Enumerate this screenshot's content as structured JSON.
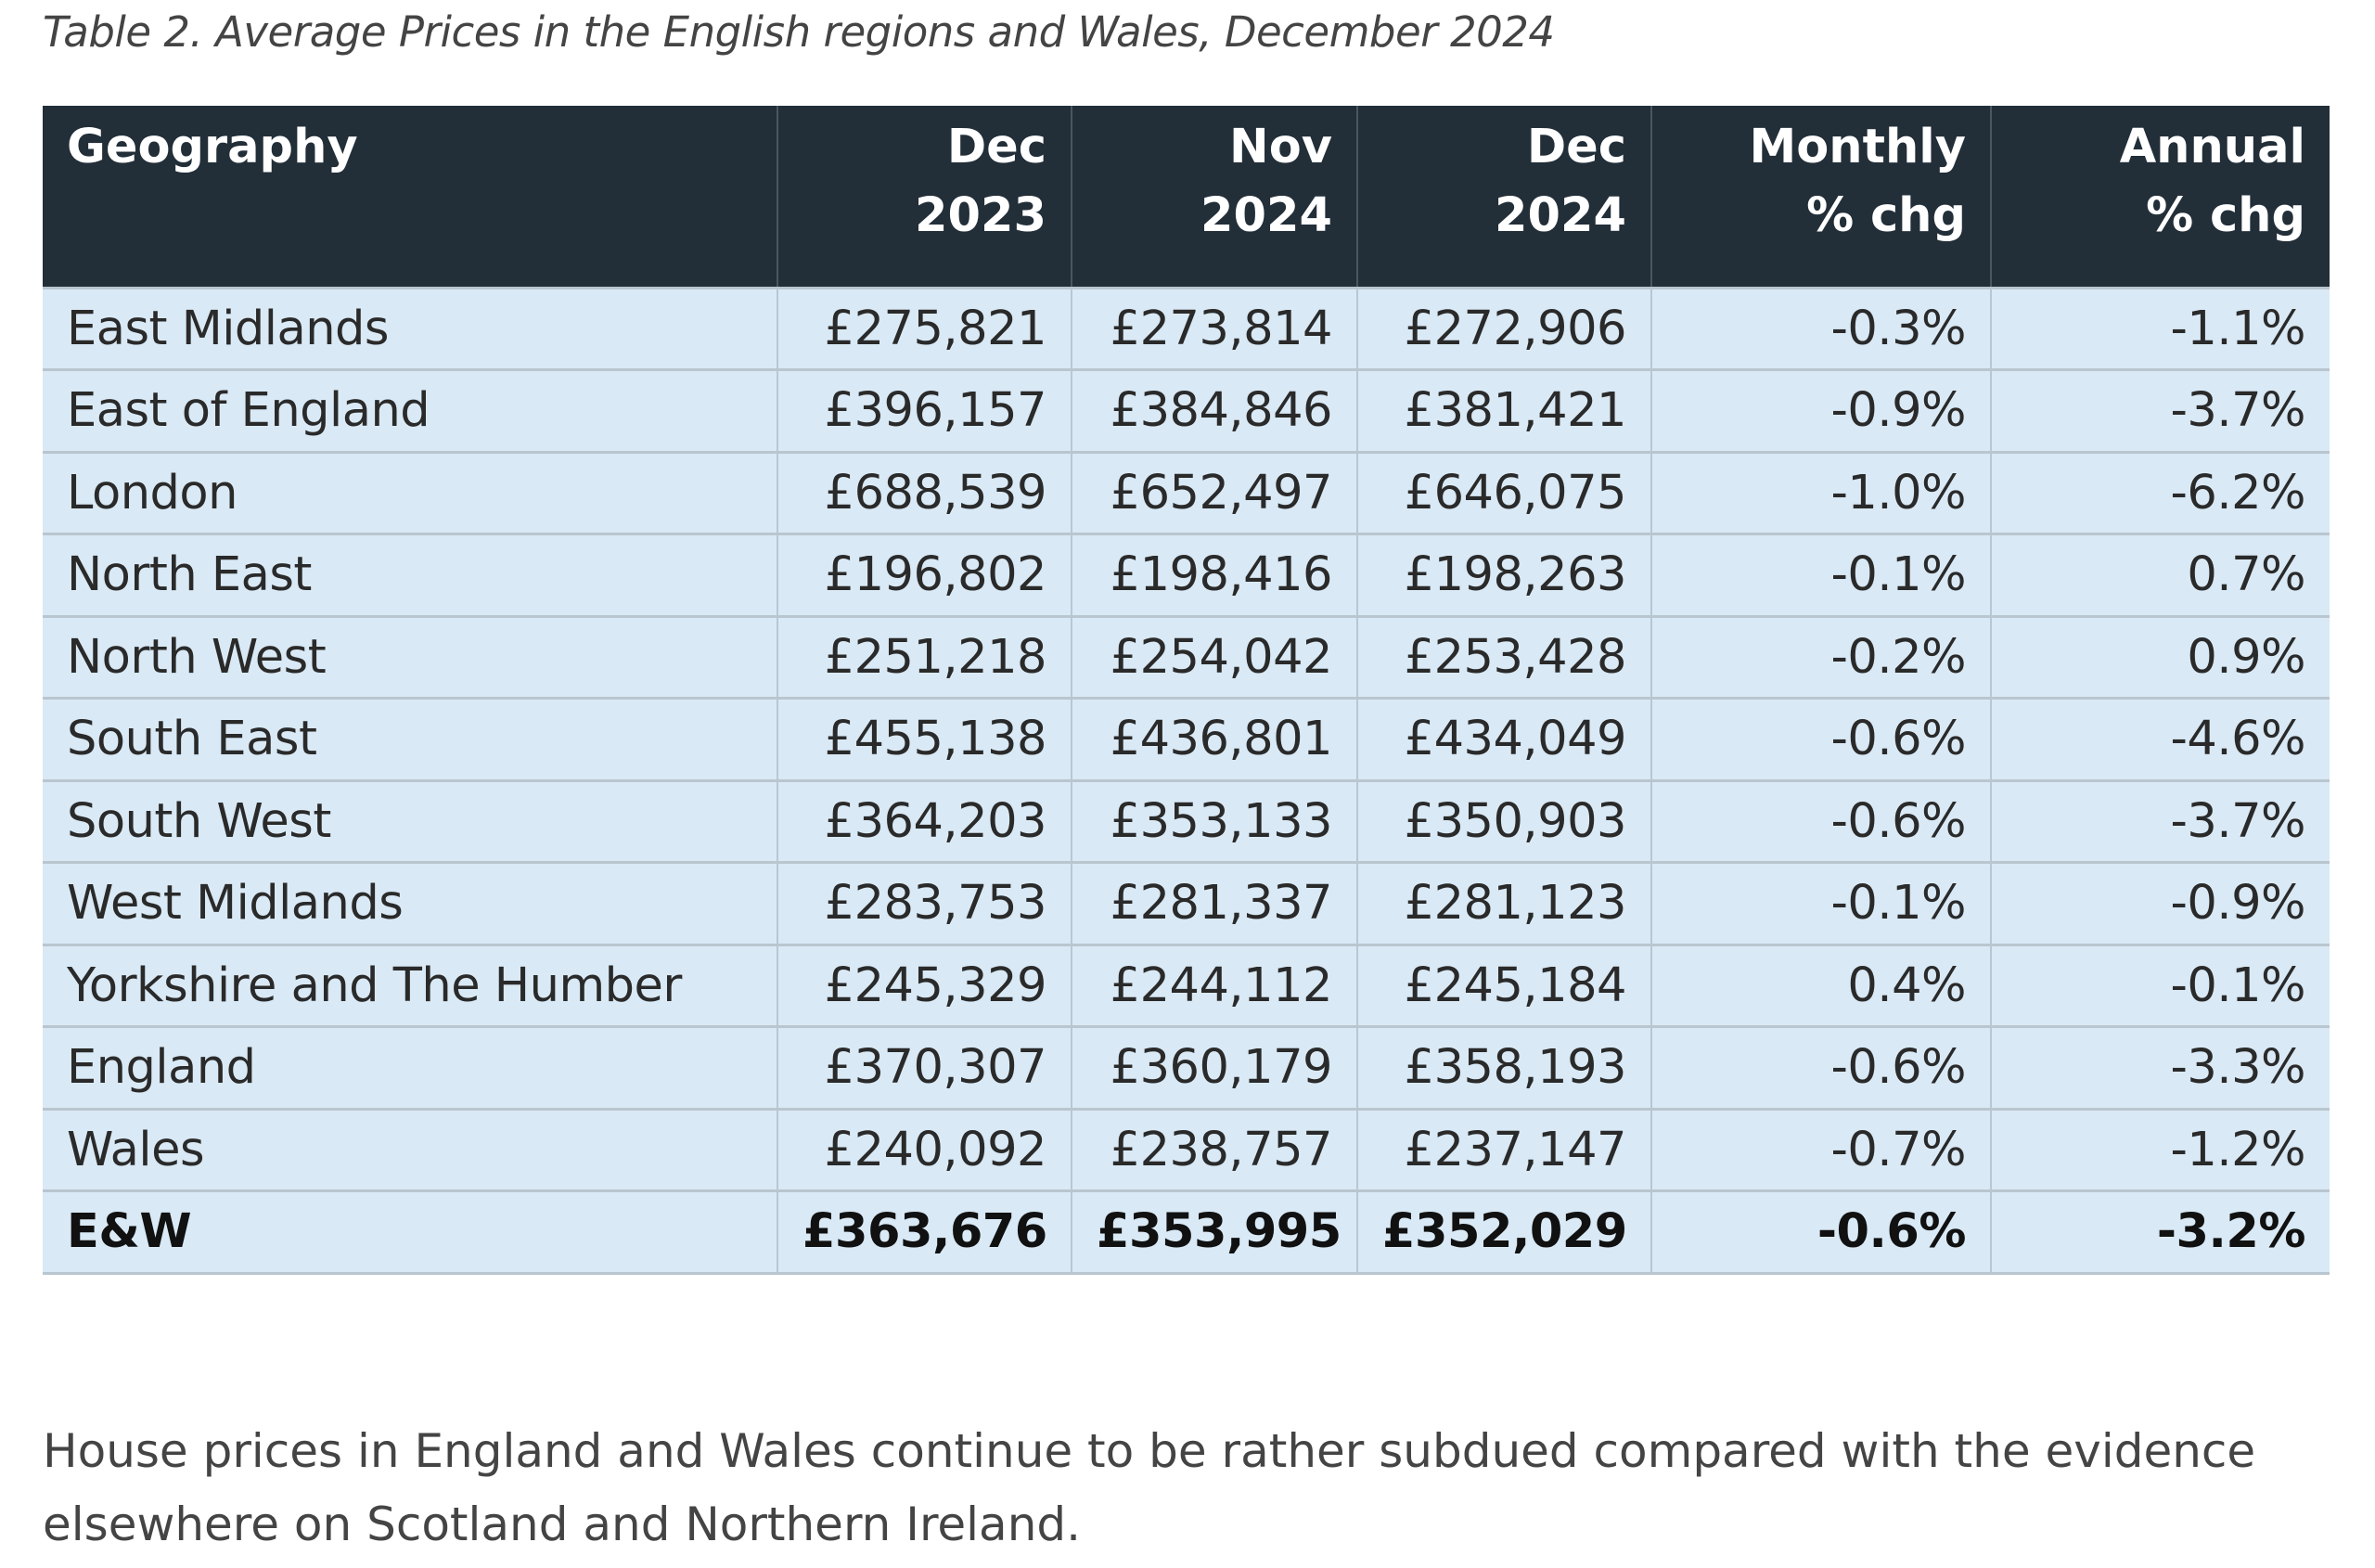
{
  "caption": "Table 2. Average Prices in the English regions and Wales, December 2024",
  "table": {
    "headers": [
      "Geography",
      "Dec 2023",
      "Nov 2024",
      "Dec 2024",
      "Monthly % chg",
      "Annual % chg"
    ],
    "header_lines": [
      [
        "Geography"
      ],
      [
        "Dec 2023"
      ],
      [
        "Nov 2024"
      ],
      [
        "Dec 2024"
      ],
      [
        "Monthly",
        "% chg"
      ],
      [
        "Annual",
        "% chg"
      ]
    ],
    "rows": [
      [
        "East Midlands",
        "£275,821",
        "£273,814",
        "£272,906",
        "-0.3%",
        "-1.1%"
      ],
      [
        "East of England",
        "£396,157",
        "£384,846",
        "£381,421",
        "-0.9%",
        "-3.7%"
      ],
      [
        "London",
        "£688,539",
        "£652,497",
        "£646,075",
        "-1.0%",
        "-6.2%"
      ],
      [
        "North East",
        "£196,802",
        "£198,416",
        "£198,263",
        "-0.1%",
        "0.7%"
      ],
      [
        "North West",
        "£251,218",
        "£254,042",
        "£253,428",
        "-0.2%",
        "0.9%"
      ],
      [
        "South East",
        "£455,138",
        "£436,801",
        "£434,049",
        "-0.6%",
        "-4.6%"
      ],
      [
        "South West",
        "£364,203",
        "£353,133",
        "£350,903",
        "-0.6%",
        "-3.7%"
      ],
      [
        "West Midlands",
        "£283,753",
        "£281,337",
        "£281,123",
        "-0.1%",
        "-0.9%"
      ],
      [
        "Yorkshire and The Humber",
        "£245,329",
        "£244,112",
        "£245,184",
        "0.4%",
        "-0.1%"
      ],
      [
        "England",
        "£370,307",
        "£360,179",
        "£358,193",
        "-0.6%",
        "-3.3%"
      ],
      [
        "Wales",
        "£240,092",
        "£238,757",
        "£237,147",
        "-0.7%",
        "-1.2%"
      ]
    ],
    "total": [
      "E&W",
      "£363,676",
      "£353,995",
      "£352,029",
      "-0.6%",
      "-3.2%"
    ]
  },
  "paragraph": "House prices in England and Wales continue to be rather subdued compared with the evidence elsewhere on Scotland and Northern Ireland.",
  "colors": {
    "header_bg": "#222e38",
    "row_bg": "#d9e9f5"
  }
}
